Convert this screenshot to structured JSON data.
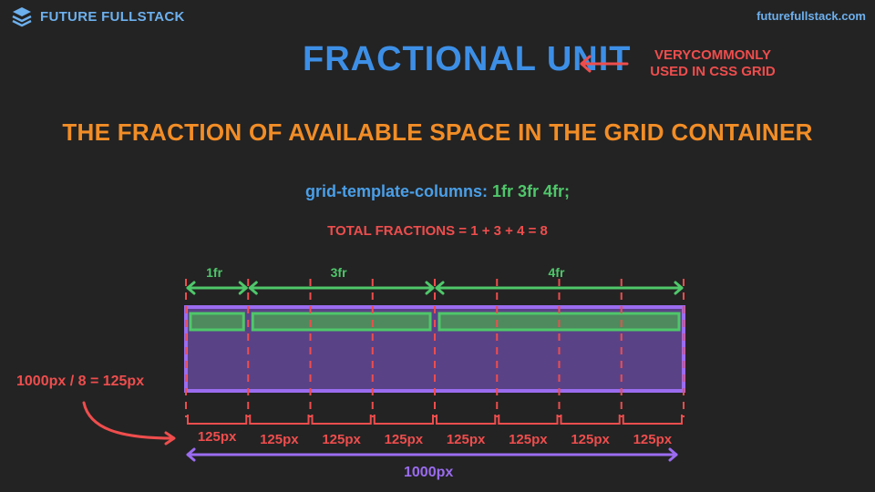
{
  "header": {
    "brand": "FUTURE FULLSTACK",
    "site": "futurefullstack.com"
  },
  "title": "FRACTIONAL UNIT",
  "note": {
    "line1": "VERYCOMMONLY",
    "line2": "USED IN CSS GRID"
  },
  "subtitle": "THE FRACTION OF AVAILABLE SPACE IN THE GRID CONTAINER",
  "code": {
    "property": "grid-template-columns:",
    "value": "1fr 3fr 4fr;"
  },
  "fractions": "TOTAL FRACTIONS = 1 + 3 + 4 = 8",
  "grid": {
    "columns": [
      {
        "label": "1fr",
        "fr": 1
      },
      {
        "label": "3fr",
        "fr": 3
      },
      {
        "label": "4fr",
        "fr": 4
      }
    ],
    "unit_label": "125px",
    "unit_count": 8,
    "calculation": "1000px / 8 = 125px",
    "total": "1000px"
  },
  "colors": {
    "background": "#232323",
    "blue": "#3d8fe6",
    "orange": "#f28d26",
    "green": "#4fc76a",
    "red": "#ef4d4d",
    "purple": "#9b6cf0"
  },
  "icons": {
    "logo": "layers-icon",
    "arrow": "arrow-left-icon"
  }
}
